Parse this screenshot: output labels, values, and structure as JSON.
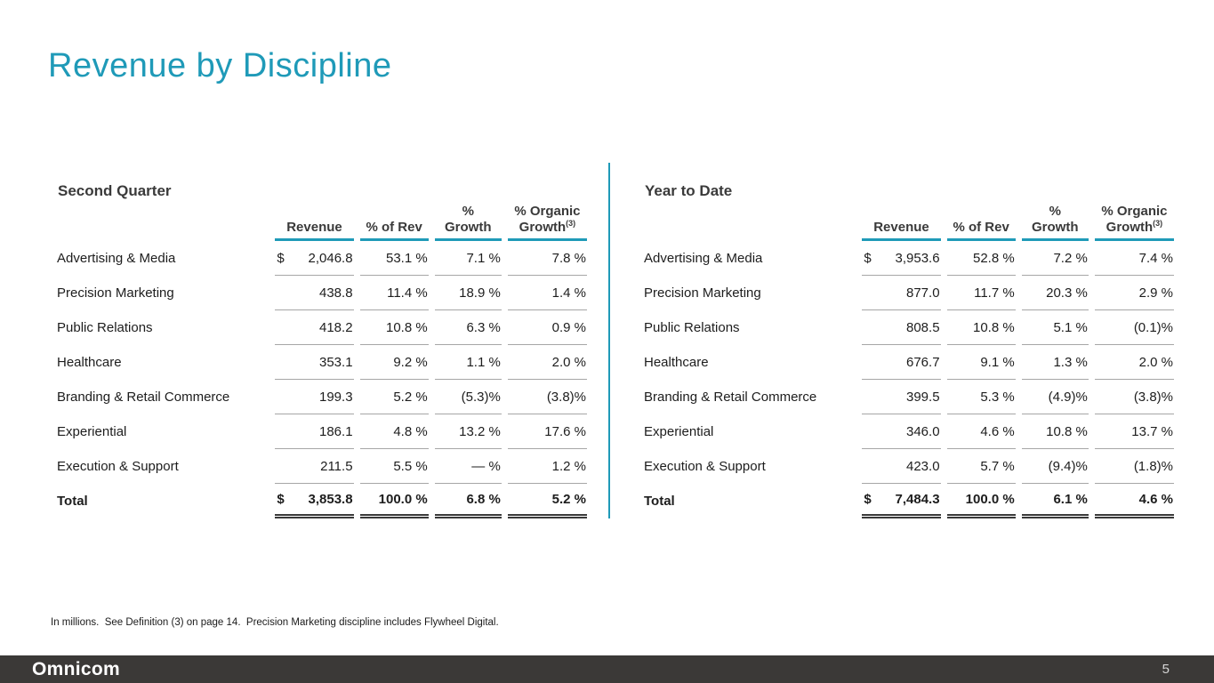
{
  "slide": {
    "title": "Revenue by Discipline",
    "footnote": "In millions.  See Definition (3) on page 14.  Precision Marketing discipline includes Flywheel Digital.",
    "brand": "Omnicom",
    "page_number": "5"
  },
  "colors": {
    "accent": "#1F9AB8",
    "footer_bg": "#3B3937",
    "separator": "#a6a6a6",
    "total_line": "#3a3a3a"
  },
  "columns": {
    "revenue": "Revenue",
    "pct_of_rev": "% of Rev",
    "pct": "%",
    "growth": "Growth",
    "pct_organic": "% Organic",
    "organic_sup": "(3)"
  },
  "tables": [
    {
      "section_title": "Second Quarter",
      "rows": [
        {
          "label": "Advertising & Media",
          "dollar": "$",
          "revenue": "2,046.8",
          "pct_of_rev": "53.1 %",
          "pct_growth": "7.1 %",
          "pct_organic": "7.8 %"
        },
        {
          "label": "Precision Marketing",
          "dollar": "",
          "revenue": "438.8",
          "pct_of_rev": "11.4 %",
          "pct_growth": "18.9 %",
          "pct_organic": "1.4 %"
        },
        {
          "label": "Public Relations",
          "dollar": "",
          "revenue": "418.2",
          "pct_of_rev": "10.8 %",
          "pct_growth": "6.3 %",
          "pct_organic": "0.9 %"
        },
        {
          "label": "Healthcare",
          "dollar": "",
          "revenue": "353.1",
          "pct_of_rev": "9.2 %",
          "pct_growth": "1.1 %",
          "pct_organic": "2.0 %"
        },
        {
          "label": "Branding & Retail Commerce",
          "dollar": "",
          "revenue": "199.3",
          "pct_of_rev": "5.2 %",
          "pct_growth": "(5.3)%",
          "pct_organic": "(3.8)%"
        },
        {
          "label": "Experiential",
          "dollar": "",
          "revenue": "186.1",
          "pct_of_rev": "4.8 %",
          "pct_growth": "13.2 %",
          "pct_organic": "17.6 %"
        },
        {
          "label": "Execution & Support",
          "dollar": "",
          "revenue": "211.5",
          "pct_of_rev": "5.5 %",
          "pct_growth": "— %",
          "pct_organic": "1.2 %"
        },
        {
          "label": "Total",
          "dollar": "$",
          "revenue": "3,853.8",
          "pct_of_rev": "100.0 %",
          "pct_growth": "6.8 %",
          "pct_organic": "5.2 %",
          "is_total": true
        }
      ]
    },
    {
      "section_title": "Year to Date",
      "rows": [
        {
          "label": "Advertising & Media",
          "dollar": "$",
          "revenue": "3,953.6",
          "pct_of_rev": "52.8 %",
          "pct_growth": "7.2 %",
          "pct_organic": "7.4 %"
        },
        {
          "label": "Precision Marketing",
          "dollar": "",
          "revenue": "877.0",
          "pct_of_rev": "11.7 %",
          "pct_growth": "20.3 %",
          "pct_organic": "2.9 %"
        },
        {
          "label": "Public Relations",
          "dollar": "",
          "revenue": "808.5",
          "pct_of_rev": "10.8 %",
          "pct_growth": "5.1 %",
          "pct_organic": "(0.1)%"
        },
        {
          "label": "Healthcare",
          "dollar": "",
          "revenue": "676.7",
          "pct_of_rev": "9.1 %",
          "pct_growth": "1.3 %",
          "pct_organic": "2.0 %"
        },
        {
          "label": "Branding & Retail Commerce",
          "dollar": "",
          "revenue": "399.5",
          "pct_of_rev": "5.3 %",
          "pct_growth": "(4.9)%",
          "pct_organic": "(3.8)%"
        },
        {
          "label": "Experiential",
          "dollar": "",
          "revenue": "346.0",
          "pct_of_rev": "4.6 %",
          "pct_growth": "10.8 %",
          "pct_organic": "13.7 %"
        },
        {
          "label": "Execution & Support",
          "dollar": "",
          "revenue": "423.0",
          "pct_of_rev": "5.7 %",
          "pct_growth": "(9.4)%",
          "pct_organic": "(1.8)%"
        },
        {
          "label": "Total",
          "dollar": "$",
          "revenue": "7,484.3",
          "pct_of_rev": "100.0 %",
          "pct_growth": "6.1 %",
          "pct_organic": "4.6 %",
          "is_total": true
        }
      ]
    }
  ]
}
